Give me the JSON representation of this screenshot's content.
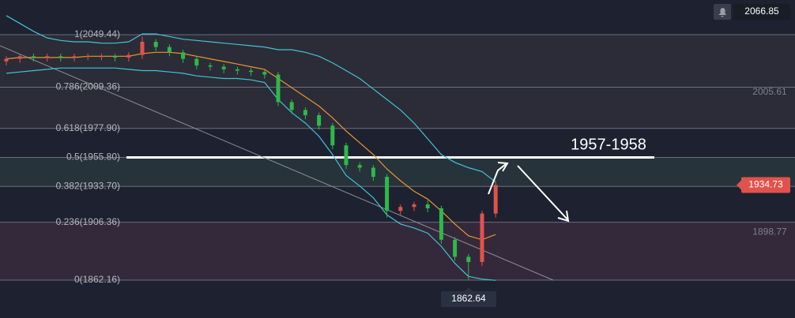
{
  "chart_data": {
    "type": "candlestick",
    "ylim": [
      1833.3,
      2075.9
    ],
    "categories": [
      null,
      null,
      null,
      null,
      null,
      null,
      null,
      null,
      null,
      null,
      null,
      null,
      null,
      null,
      null,
      null,
      null,
      null,
      null,
      null,
      null,
      null,
      null,
      null,
      null,
      null,
      null,
      null,
      null,
      null,
      null,
      null,
      null,
      null,
      null,
      null,
      null
    ],
    "open": [
      2029,
      2031,
      2033,
      2032,
      2033,
      2032,
      2033,
      2033,
      2033,
      2032,
      2034,
      2044,
      2040,
      2036,
      2031,
      2026,
      2025,
      2023,
      2022,
      2021,
      2019,
      1998,
      1992,
      1988,
      1980,
      1965,
      1950,
      1948,
      1941,
      1915,
      1918,
      1920,
      1917,
      1893,
      1880,
      1876,
      1913
    ],
    "high": [
      2033,
      2035,
      2035,
      2035,
      2035,
      2035,
      2035,
      2035,
      2035,
      2036,
      2048,
      2046,
      2042,
      2038,
      2033,
      2028,
      2027,
      2025,
      2024,
      2023,
      2021,
      2000,
      1994,
      1990,
      1982,
      1967,
      1952,
      1950,
      1943,
      1920,
      1922,
      1923,
      1919,
      1895,
      1882,
      1915,
      1937
    ],
    "low": [
      2026,
      2028,
      2029,
      2029,
      2029,
      2029,
      2030,
      2030,
      2029,
      2029,
      2031,
      2037,
      2033,
      2028,
      2023,
      2022,
      2020,
      2019,
      2018,
      2016,
      1995,
      1989,
      1985,
      1977,
      1962,
      1947,
      1945,
      1938,
      1910,
      1912,
      1915,
      1914,
      1890,
      1877,
      1862.64,
      1873,
      1910
    ],
    "close": [
      2031,
      2033,
      2032,
      2033,
      2032,
      2033,
      2033,
      2033,
      2032,
      2034,
      2044,
      2040,
      2036,
      2031,
      2026,
      2025,
      2023,
      2022,
      2021,
      2019,
      1998,
      1992,
      1988,
      1980,
      1965,
      1950,
      1948,
      1941,
      1915,
      1918,
      1920,
      1917,
      1893,
      1880,
      1876,
      1913,
      1934.73
    ],
    "up_color": "#e0524c",
    "down_color": "#2fb84a",
    "series": [
      {
        "color": "#3fc4d6",
        "values": [
          2064,
          2058,
          2052,
          2047,
          2045,
          2044,
          2044,
          2043,
          2043,
          2044,
          2050,
          2050,
          2048,
          2046,
          2045,
          2044,
          2043,
          2042,
          2041,
          2040,
          2038,
          2038,
          2036,
          2033,
          2028,
          2022,
          2016,
          2008,
          2000,
          1992,
          1982,
          1970,
          1958,
          1952,
          1948,
          1945,
          1937
        ]
      },
      {
        "color": "#3fc4d6",
        "values": [
          2020,
          2021,
          2022,
          2023,
          2024,
          2024,
          2024,
          2024,
          2024,
          2023,
          2022,
          2022,
          2021,
          2020,
          2018,
          2017,
          2016,
          2016,
          2015,
          2013,
          2000,
          1990,
          1982,
          1972,
          1958,
          1942,
          1934,
          1925,
          1912,
          1905,
          1902,
          1898,
          1888,
          1875,
          1865,
          1863,
          1862
        ]
      },
      {
        "color": "#e8962e",
        "values": [
          2031,
          2032,
          2032,
          2032,
          2032,
          2032,
          2033,
          2033,
          2033,
          2033,
          2035,
          2036,
          2036,
          2035,
          2033,
          2031,
          2029,
          2027,
          2025,
          2023,
          2016,
          2009,
          2002,
          1995,
          1986,
          1976,
          1967,
          1958,
          1947,
          1938,
          1930,
          1924,
          1915,
          1905,
          1896,
          1893,
          1897
        ]
      }
    ],
    "yticks": [
      {
        "value": 2049.44,
        "label": "1(2049.44)"
      },
      {
        "value": 2009.36,
        "label": "0.786(2009.36)"
      },
      {
        "value": 1977.9,
        "label": "0.618(1977.90)"
      },
      {
        "value": 1955.8,
        "label": "0.5(1955.80)"
      },
      {
        "value": 1933.7,
        "label": "0.382(1933.70)"
      },
      {
        "value": 1906.36,
        "label": "0.236(1906.36)"
      },
      {
        "value": 1862.16,
        "label": "0(1862.16)"
      }
    ],
    "price_labels": [
      2066.85,
      2005.61,
      1934.73,
      1898.77,
      1862.64
    ],
    "annotation": "1957-1958"
  }
}
